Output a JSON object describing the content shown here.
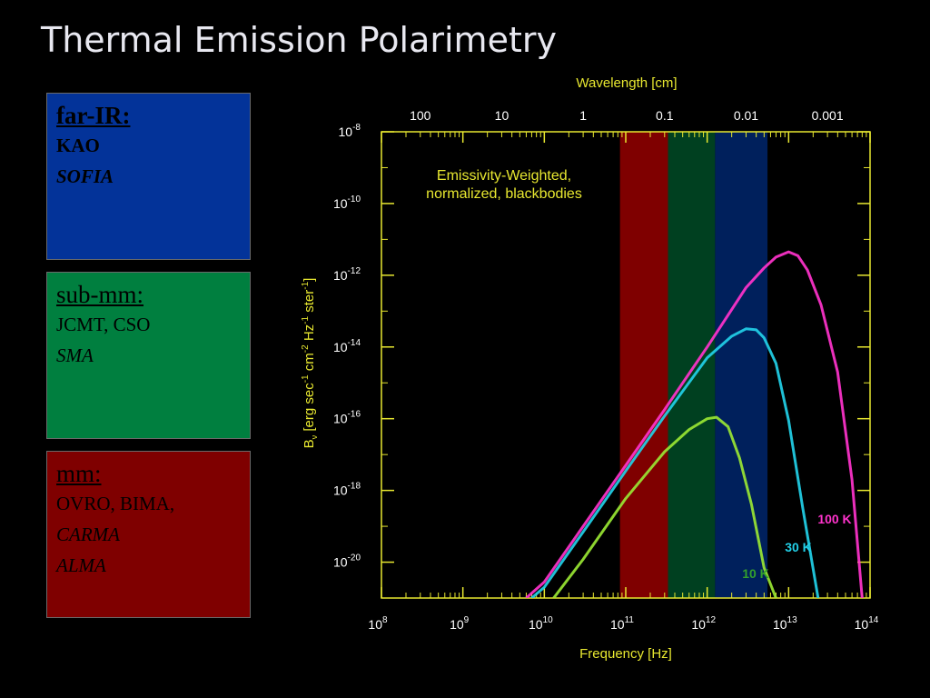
{
  "slide": {
    "title": "Thermal Emission Polarimetry"
  },
  "panels": [
    {
      "id": "far-ir",
      "heading": "far-IR:",
      "lines": [
        {
          "text": "KAO",
          "italic": false
        },
        {
          "text": "SOFIA",
          "italic": true
        }
      ],
      "color": "#033399"
    },
    {
      "id": "sub-mm",
      "heading": "sub-mm:",
      "lines": [
        {
          "text": "JCMT, CSO",
          "italic": false
        },
        {
          "text": "SMA",
          "italic": true
        }
      ],
      "color": "#007f3f"
    },
    {
      "id": "mm",
      "heading": "mm:",
      "lines": [
        {
          "text": "OVRO, BIMA,",
          "italic": false
        },
        {
          "text": "CARMA",
          "italic": true
        },
        {
          "text": "ALMA",
          "italic": true
        }
      ],
      "color": "#7f0000"
    }
  ],
  "chart_data": {
    "type": "line",
    "title": "",
    "annotation": [
      "Emissivity-Weighted,",
      "normalized, blackbodies"
    ],
    "xlabel": "Frequency [Hz]",
    "x2label": "Wavelength [cm]",
    "ylabel": {
      "main": "B",
      "sub": "ν",
      "text": " [erg sec",
      "sup1": "-1",
      "mid1": " cm",
      "sup2": "-2",
      "mid2": " Hz",
      "sup3": "-1",
      "mid3": " ster",
      "sup4": "-1",
      "tail": "]"
    },
    "x_scale": "log",
    "y_scale": "log",
    "xlim": [
      100000000.0,
      100000000000000.0
    ],
    "ylim": [
      1e-21,
      1e-08
    ],
    "x_ticks": [
      {
        "base": "10",
        "exp": "8",
        "value": 100000000.0
      },
      {
        "base": "10",
        "exp": "9",
        "value": 1000000000.0
      },
      {
        "base": "10",
        "exp": "10",
        "value": 10000000000.0
      },
      {
        "base": "10",
        "exp": "11",
        "value": 100000000000.0
      },
      {
        "base": "10",
        "exp": "12",
        "value": 1000000000000.0
      },
      {
        "base": "10",
        "exp": "13",
        "value": 10000000000000.0
      },
      {
        "base": "10",
        "exp": "14",
        "value": 100000000000000.0
      }
    ],
    "x2_ticks": [
      {
        "label": "100",
        "wavelength_cm": 100
      },
      {
        "label": "10",
        "wavelength_cm": 10
      },
      {
        "label": "1",
        "wavelength_cm": 1
      },
      {
        "label": "0.1",
        "wavelength_cm": 0.1
      },
      {
        "label": "0.01",
        "wavelength_cm": 0.01
      },
      {
        "label": "0.001",
        "wavelength_cm": 0.001
      }
    ],
    "y_ticks": [
      {
        "base": "10",
        "exp": "-8",
        "value": 1e-08
      },
      {
        "base": "10",
        "exp": "-10",
        "value": 1e-10
      },
      {
        "base": "10",
        "exp": "-12",
        "value": 1e-12
      },
      {
        "base": "10",
        "exp": "-14",
        "value": 1e-14
      },
      {
        "base": "10",
        "exp": "-16",
        "value": 1e-16
      },
      {
        "base": "10",
        "exp": "-18",
        "value": 1e-18
      },
      {
        "base": "10",
        "exp": "-20",
        "value": 1e-20
      }
    ],
    "bands": [
      {
        "id": "mm",
        "x_range": [
          85000000000.0,
          330000000000.0
        ],
        "color": "#7f0000"
      },
      {
        "id": "sub-mm",
        "x_range": [
          330000000000.0,
          1250000000000.0
        ],
        "color": "#004020"
      },
      {
        "id": "far-ir",
        "x_range": [
          1250000000000.0,
          5500000000000.0
        ],
        "color": "#00205c"
      }
    ],
    "series": [
      {
        "name": "100 K",
        "color": "#ff33cc",
        "x": [
          6000000000.0,
          10000000000.0,
          30000000000.0,
          100000000000.0,
          300000000000.0,
          1000000000000.0,
          3000000000000.0,
          5000000000000.0,
          7000000000000.0,
          10000000000000.0,
          13000000000000.0,
          17000000000000.0,
          25000000000000.0,
          40000000000000.0,
          60000000000000.0,
          80000000000000.0
        ],
        "y": [
          1e-21,
          2.8e-21,
          1e-19,
          5e-18,
          1.8e-16,
          1e-14,
          4.5e-13,
          1.6e-12,
          3.2e-12,
          4.5e-12,
          3.5e-12,
          1.4e-12,
          1.5e-13,
          2e-15,
          2e-18,
          1e-21
        ]
      },
      {
        "name": "30 K",
        "color": "#22d0e8",
        "x": [
          7000000000.0,
          10000000000.0,
          30000000000.0,
          100000000000.0,
          300000000000.0,
          1000000000000.0,
          2000000000000.0,
          3000000000000.0,
          4000000000000.0,
          5000000000000.0,
          7000000000000.0,
          10000000000000.0,
          15000000000000.0,
          23000000000000.0
        ],
        "y": [
          1e-21,
          2e-21,
          7e-20,
          3.5e-18,
          1.2e-16,
          5e-15,
          2e-14,
          3.2e-14,
          3e-14,
          1.8e-14,
          3.5e-15,
          9e-17,
          3e-19,
          1e-21
        ]
      },
      {
        "name": "10 K",
        "color": "#99e633",
        "x": [
          13000000000.0,
          30000000000.0,
          100000000000.0,
          300000000000.0,
          600000000000.0,
          1000000000000.0,
          1300000000000.0,
          1800000000000.0,
          2500000000000.0,
          3500000000000.0,
          5000000000000.0,
          7000000000000.0
        ],
        "y": [
          1e-21,
          1.2e-20,
          6e-19,
          1.2e-17,
          5e-17,
          1e-16,
          1.1e-16,
          6e-17,
          8e-18,
          4e-19,
          7e-21,
          1e-21
        ]
      }
    ],
    "series_label_colors": {
      "100 K": "#ff33cc",
      "30 K": "#22d0e8",
      "10 K": "#33a02c"
    },
    "axis_color": "#e8e830",
    "label_color": "#e8e830",
    "tick_text_color": "#ffffff",
    "grid": false
  }
}
